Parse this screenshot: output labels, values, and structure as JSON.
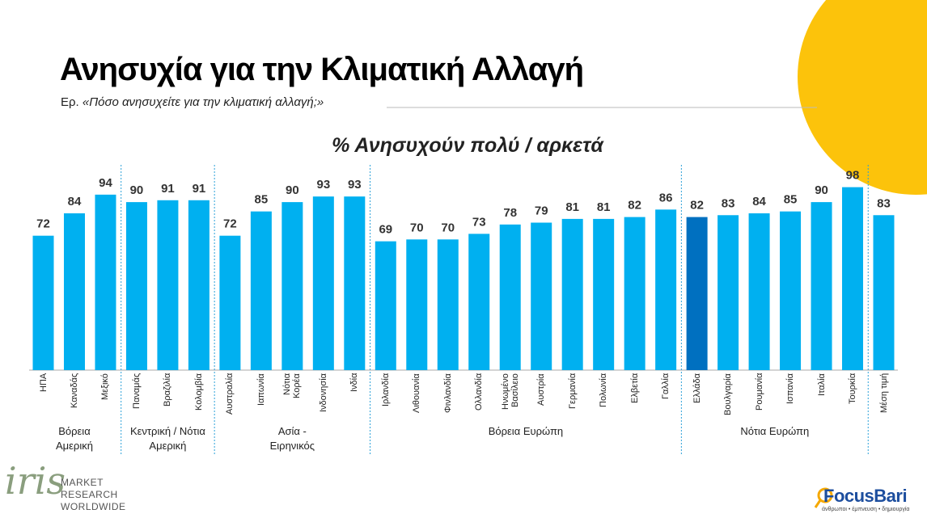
{
  "chart_data": {
    "type": "bar",
    "title": "Ανησυχία για την Κλιματική Αλλαγή",
    "subtitle_prefix": "Ερ.",
    "subtitle": "«Πόσο ανησυχείτε για την κλιματική αλλαγή;»",
    "chart_title": "% Ανησυχούν πολύ / αρκετά",
    "color": "#00b0f0",
    "highlight": {
      "category": "Ελλάδα",
      "color": "#0070c0"
    },
    "ylim": [
      0,
      100
    ],
    "groups": [
      {
        "name": "Βόρεια\nΑμερική",
        "categories": [
          "ΗΠΑ",
          "Καναδάς",
          "Μεξικό"
        ],
        "values": [
          72,
          84,
          94
        ]
      },
      {
        "name": "Κεντρική / Νότια\nΑμερική",
        "categories": [
          "Παναμάς",
          "Βραζιλία",
          "Κολομβία"
        ],
        "values": [
          90,
          91,
          91
        ]
      },
      {
        "name": "Ασία -\nΕιρηνικός",
        "categories": [
          "Αυστραλία",
          "Ιαπωνία",
          "Νότια\nΚορέα",
          "Ινδονησία",
          "Ινδία"
        ],
        "values": [
          72,
          85,
          90,
          93,
          93
        ]
      },
      {
        "name": "Βόρεια Ευρώπη",
        "categories": [
          "Ιρλανδία",
          "Λιθουανία",
          "Φινλανδία",
          "Ολλανδία",
          "Ηνωμένο\nΒασίλειο",
          "Αυστρία",
          "Γερμανία",
          "Πολωνία",
          "Ελβετία",
          "Γαλλία"
        ],
        "values": [
          69,
          70,
          70,
          73,
          78,
          79,
          81,
          81,
          82,
          86
        ]
      },
      {
        "name": "Νότια Ευρώπη",
        "categories": [
          "Ελλάδα",
          "Βουλγαρία",
          "Ρουμανία",
          "Ισπανία",
          "Ιταλία",
          "Τουρκία"
        ],
        "values": [
          82,
          83,
          84,
          85,
          90,
          98
        ]
      },
      {
        "categories": [
          "Μέση τιμή"
        ],
        "values": [
          83
        ]
      }
    ]
  },
  "logos": {
    "iris": "iris",
    "iris_text": "MARKET\nRESEARCH\nWORLDWIDE",
    "focus": "FocusBari",
    "focus_tagline": "άνθρωποι • έμπνευση • δημιουργία"
  }
}
